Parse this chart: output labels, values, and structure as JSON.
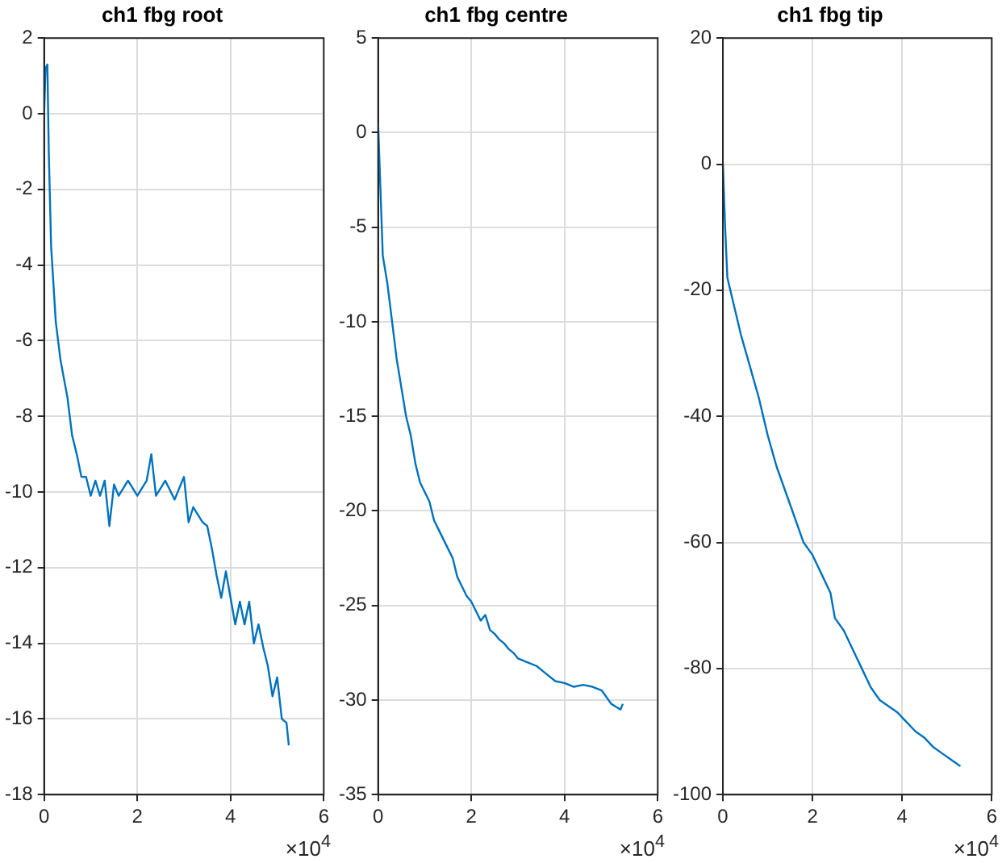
{
  "chart_data": [
    {
      "type": "line",
      "title": "ch1 fbg root",
      "color": "#0072bd",
      "marker": "none",
      "grid": true,
      "legend": false,
      "annotations": [
        "×10$^{4}$"
      ],
      "x": [
        0,
        0.03,
        0.07,
        0.1,
        0.15,
        0.25,
        0.35,
        0.5,
        0.6,
        0.7,
        0.8,
        0.9,
        1,
        1.1,
        1.2,
        1.3,
        1.4,
        1.5,
        1.6,
        1.8,
        2,
        2.2,
        2.3,
        2.4,
        2.6,
        2.8,
        3,
        3.1,
        3.2,
        3.4,
        3.5,
        3.6,
        3.7,
        3.8,
        3.9,
        4,
        4.1,
        4.2,
        4.3,
        4.4,
        4.5,
        4.6,
        4.7,
        4.8,
        4.9,
        5,
        5.1,
        5.2,
        5.25
      ],
      "values": [
        0,
        1.2,
        1.3,
        -1,
        -3.5,
        -5.5,
        -6.5,
        -7.5,
        -8.5,
        -9,
        -9.6,
        -9.6,
        -10.1,
        -9.7,
        -10.1,
        -9.7,
        -10.9,
        -9.8,
        -10.1,
        -9.7,
        -10.1,
        -9.7,
        -9,
        -10.1,
        -9.7,
        -10.2,
        -9.6,
        -10.8,
        -10.4,
        -10.8,
        -10.9,
        -11.5,
        -12.2,
        -12.8,
        -12.1,
        -12.8,
        -13.5,
        -12.9,
        -13.5,
        -12.9,
        -14,
        -13.5,
        -14.1,
        -14.6,
        -15.4,
        -14.9,
        -16,
        -16.1,
        -16.7
      ],
      "xlim": [
        0,
        6
      ],
      "xticks": [
        0,
        2,
        4,
        6
      ],
      "ylim": [
        -18,
        2
      ],
      "yticks": [
        -18,
        -16,
        -14,
        -12,
        -10,
        -8,
        -6,
        -4,
        -2,
        0,
        2
      ]
    },
    {
      "type": "line",
      "title": "ch1 fbg centre",
      "color": "#0072bd",
      "marker": "none",
      "grid": true,
      "legend": false,
      "annotations": [
        "×10$^{4}$"
      ],
      "x": [
        0,
        0.05,
        0.1,
        0.2,
        0.3,
        0.4,
        0.5,
        0.6,
        0.7,
        0.8,
        0.9,
        1,
        1.1,
        1.2,
        1.3,
        1.4,
        1.5,
        1.6,
        1.7,
        1.8,
        1.9,
        2,
        2.1,
        2.2,
        2.3,
        2.4,
        2.5,
        2.6,
        2.7,
        2.8,
        2.9,
        3,
        3.2,
        3.4,
        3.6,
        3.8,
        4,
        4.2,
        4.4,
        4.6,
        4.8,
        5,
        5.2,
        5.25
      ],
      "values": [
        0.5,
        -3,
        -6.5,
        -8,
        -10,
        -12,
        -13.5,
        -15,
        -16,
        -17.5,
        -18.5,
        -19,
        -19.5,
        -20.5,
        -21,
        -21.5,
        -22,
        -22.5,
        -23.5,
        -24,
        -24.5,
        -24.8,
        -25.3,
        -25.8,
        -25.5,
        -26.3,
        -26.5,
        -26.8,
        -27,
        -27.3,
        -27.5,
        -27.8,
        -28,
        -28.2,
        -28.6,
        -29,
        -29.1,
        -29.3,
        -29.2,
        -29.3,
        -29.5,
        -30.2,
        -30.5,
        -30.2
      ],
      "xlim": [
        0,
        6
      ],
      "xticks": [
        0,
        2,
        4,
        6
      ],
      "ylim": [
        -35,
        5
      ],
      "yticks": [
        -35,
        -30,
        -25,
        -20,
        -15,
        -10,
        -5,
        0,
        5
      ]
    },
    {
      "type": "line",
      "title": "ch1 fbg tip",
      "color": "#0072bd",
      "marker": "none",
      "grid": true,
      "legend": false,
      "annotations": [
        "×10$^{4}$"
      ],
      "x": [
        0,
        0.05,
        0.1,
        0.2,
        0.4,
        0.6,
        0.8,
        1,
        1.2,
        1.4,
        1.6,
        1.8,
        2,
        2.2,
        2.4,
        2.5,
        2.7,
        2.9,
        3.1,
        3.3,
        3.5,
        3.7,
        3.9,
        4.1,
        4.3,
        4.5,
        4.7,
        4.9,
        5.1,
        5.3
      ],
      "values": [
        0,
        -10,
        -18,
        -21,
        -27,
        -32,
        -37,
        -43,
        -48,
        -52,
        -56,
        -60,
        -62,
        -65,
        -68,
        -72,
        -74,
        -77,
        -80,
        -83,
        -85,
        -86,
        -87,
        -88.5,
        -90,
        -91,
        -92.5,
        -93.5,
        -94.5,
        -95.5
      ],
      "xlim": [
        0,
        6
      ],
      "xticks": [
        0,
        2,
        4,
        6
      ],
      "ylim": [
        -100,
        20
      ],
      "yticks": [
        -100,
        -80,
        -60,
        -40,
        -20,
        0,
        20
      ]
    }
  ]
}
